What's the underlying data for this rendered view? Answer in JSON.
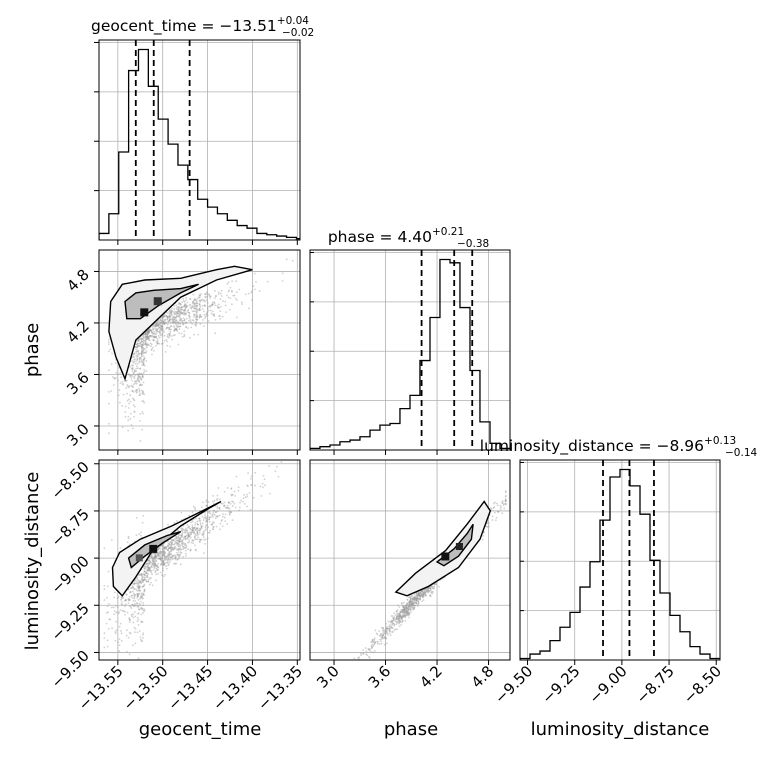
{
  "chart_data": {
    "type": "corner",
    "grid": true,
    "axis_labels": {
      "geocent_time": "geocent_time",
      "phase": "phase",
      "luminosity_distance": "luminosity_distance"
    },
    "titles": {
      "geocent_time": {
        "main": "geocent_time = −13.51",
        "sup": "+0.04",
        "sub": "−0.02"
      },
      "phase": {
        "main": "phase = 4.40",
        "sup": "+0.21",
        "sub": "−0.38"
      },
      "luminosity_distance": {
        "main": "luminosity_distance = −8.96",
        "sup": "+0.13",
        "sub": "−0.14"
      }
    },
    "ticks": {
      "geocent_time": {
        "values": [
          -13.55,
          -13.5,
          -13.45,
          -13.4,
          -13.35
        ],
        "labels": [
          "−13.55",
          "−13.50",
          "−13.45",
          "−13.40",
          "−13.35"
        ]
      },
      "phase_x": {
        "values": [
          3.0,
          3.6,
          4.2,
          4.8
        ],
        "labels": [
          "3.0",
          "3.6",
          "4.2",
          "4.8"
        ]
      },
      "phase_y": {
        "values": [
          3.0,
          3.6,
          4.2,
          4.8
        ],
        "labels": [
          "3.0",
          "3.6",
          "4.2",
          "4.8"
        ]
      },
      "luminosity_distance_x": {
        "values": [
          -9.5,
          -9.25,
          -9.0,
          -8.75,
          -8.5
        ],
        "labels": [
          "−9.50",
          "−9.25",
          "−9.00",
          "−8.75",
          "−8.50"
        ]
      },
      "luminosity_distance_y": {
        "values": [
          -9.5,
          -9.25,
          -9.0,
          -8.75,
          -8.5
        ],
        "labels": [
          "−9.50",
          "−9.25",
          "−9.00",
          "−8.75",
          "−8.50"
        ]
      }
    },
    "ranges": {
      "geocent_time": [
        -13.571,
        -13.347
      ],
      "phase": [
        2.72,
        5.05
      ],
      "luminosity_distance": [
        -9.54,
        -8.48
      ]
    },
    "histograms": {
      "geocent_time": {
        "edges": [
          -13.571,
          -13.56,
          -13.549,
          -13.538,
          -13.527,
          -13.516,
          -13.505,
          -13.494,
          -13.483,
          -13.472,
          -13.461,
          -13.45,
          -13.439,
          -13.428,
          -13.417,
          -13.406,
          -13.395,
          -13.384,
          -13.373,
          -13.362,
          -13.351,
          -13.347
        ],
        "counts": [
          0.5,
          2.0,
          6.7,
          12.9,
          14.5,
          11.7,
          9.2,
          7.3,
          5.7,
          4.6,
          3.1,
          2.5,
          2.0,
          1.5,
          1.1,
          0.9,
          0.5,
          0.4,
          0.3,
          0.2,
          0.1
        ],
        "quantiles": [
          -13.53,
          -13.51,
          -13.47
        ]
      },
      "phase": {
        "edges": [
          2.72,
          2.836,
          2.953,
          3.069,
          3.186,
          3.302,
          3.419,
          3.535,
          3.652,
          3.768,
          3.885,
          4.001,
          4.118,
          4.234,
          4.351,
          4.467,
          4.584,
          4.7,
          4.817,
          4.933,
          5.05
        ],
        "counts": [
          0.1,
          0.2,
          0.3,
          0.5,
          0.6,
          0.8,
          1.2,
          1.5,
          1.6,
          2.5,
          3.3,
          5.4,
          8.0,
          11.5,
          11.3,
          8.6,
          4.8,
          1.7,
          0.4,
          0.1
        ],
        "quantiles": [
          4.02,
          4.4,
          4.61
        ]
      },
      "luminosity_distance": {
        "edges": [
          -9.54,
          -9.487,
          -9.434,
          -9.381,
          -9.328,
          -9.275,
          -9.222,
          -9.169,
          -9.116,
          -9.063,
          -9.01,
          -8.957,
          -8.904,
          -8.851,
          -8.798,
          -8.745,
          -8.692,
          -8.639,
          -8.586,
          -8.533,
          -8.48
        ],
        "counts": [
          0.1,
          0.4,
          0.6,
          1.3,
          2.2,
          3.2,
          4.9,
          6.6,
          9.4,
          12.3,
          12.8,
          11.7,
          9.8,
          6.7,
          4.5,
          3.0,
          1.9,
          0.9,
          0.4,
          0.1
        ],
        "quantiles": [
          -9.1,
          -8.96,
          -8.83
        ]
      }
    },
    "contour_levels": [
      0.5,
      0.9
    ],
    "correlations": {
      "phase_vs_geocent_time": {
        "mode": [
          -13.505,
          4.42
        ],
        "trend": "rising then flat"
      },
      "luminosity_distance_vs_geocent_time": {
        "mode": [
          -13.51,
          -8.97
        ],
        "trend": "rising"
      },
      "luminosity_distance_vs_phase": {
        "mode": [
          4.43,
          -8.97
        ],
        "trend": "linear rising"
      }
    },
    "colors": {
      "line": "#000000",
      "scatter": "#999999",
      "grid": "#b0b0b0",
      "fill": "#555555"
    }
  }
}
